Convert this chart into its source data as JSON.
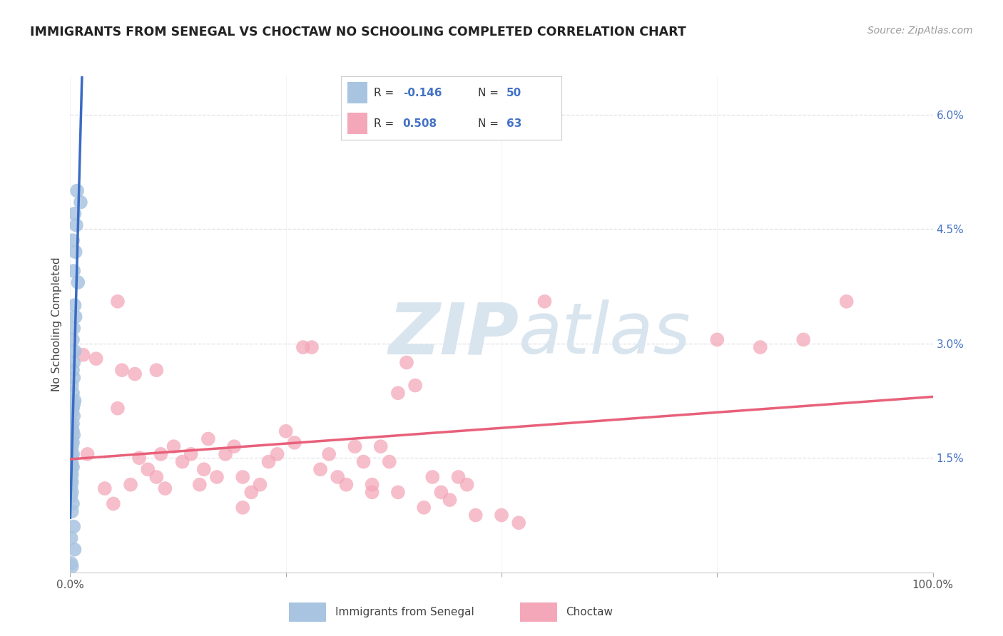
{
  "title": "IMMIGRANTS FROM SENEGAL VS CHOCTAW NO SCHOOLING COMPLETED CORRELATION CHART",
  "source": "Source: ZipAtlas.com",
  "ylabel": "No Schooling Completed",
  "xlim": [
    0,
    100
  ],
  "ylim": [
    0,
    6.5
  ],
  "yticks": [
    0,
    1.5,
    3.0,
    4.5,
    6.0
  ],
  "ytick_labels_right": [
    "",
    "1.5%",
    "3.0%",
    "4.5%",
    "6.0%"
  ],
  "blue_scatter_x": [
    0.8,
    1.2,
    0.5,
    0.7,
    0.3,
    0.6,
    0.4,
    0.9,
    0.5,
    0.6,
    0.4,
    0.3,
    0.5,
    0.4,
    0.3,
    0.4,
    0.2,
    0.3,
    0.5,
    0.4,
    0.3,
    0.2,
    0.4,
    0.3,
    0.2,
    0.3,
    0.4,
    0.2,
    0.3,
    0.2,
    0.1,
    0.3,
    0.2,
    0.1,
    0.2,
    0.3,
    0.1,
    0.2,
    0.1,
    0.2,
    0.1,
    0.2,
    0.1,
    0.3,
    0.2,
    0.4,
    0.1,
    0.5,
    0.1,
    0.2
  ],
  "blue_scatter_y": [
    5.0,
    4.85,
    4.7,
    4.55,
    4.35,
    4.2,
    3.95,
    3.8,
    3.5,
    3.35,
    3.2,
    3.05,
    2.9,
    2.75,
    2.65,
    2.55,
    2.45,
    2.35,
    2.25,
    2.2,
    2.15,
    2.1,
    2.05,
    1.95,
    1.9,
    1.85,
    1.8,
    1.75,
    1.7,
    1.65,
    1.6,
    1.55,
    1.5,
    1.48,
    1.42,
    1.38,
    1.32,
    1.28,
    1.22,
    1.18,
    1.12,
    1.05,
    1.0,
    0.9,
    0.8,
    0.6,
    0.45,
    0.3,
    0.12,
    0.08
  ],
  "pink_scatter_x": [
    1.5,
    2.0,
    3.0,
    4.0,
    5.0,
    5.5,
    6.0,
    7.0,
    7.5,
    8.0,
    9.0,
    10.0,
    10.5,
    11.0,
    12.0,
    13.0,
    14.0,
    15.0,
    15.5,
    16.0,
    17.0,
    18.0,
    19.0,
    20.0,
    21.0,
    22.0,
    23.0,
    24.0,
    25.0,
    26.0,
    27.0,
    28.0,
    29.0,
    30.0,
    31.0,
    32.0,
    33.0,
    34.0,
    35.0,
    36.0,
    37.0,
    38.0,
    39.0,
    40.0,
    41.0,
    42.0,
    43.0,
    44.0,
    45.0,
    46.0,
    47.0,
    50.0,
    52.0,
    55.0,
    75.0,
    80.0,
    85.0,
    90.0,
    5.5,
    10.0,
    20.0,
    35.0,
    38.0
  ],
  "pink_scatter_y": [
    2.85,
    1.55,
    2.8,
    1.1,
    0.9,
    3.55,
    2.65,
    1.15,
    2.6,
    1.5,
    1.35,
    1.25,
    1.55,
    1.1,
    1.65,
    1.45,
    1.55,
    1.15,
    1.35,
    1.75,
    1.25,
    1.55,
    1.65,
    1.25,
    1.05,
    1.15,
    1.45,
    1.55,
    1.85,
    1.7,
    2.95,
    2.95,
    1.35,
    1.55,
    1.25,
    1.15,
    1.65,
    1.45,
    1.05,
    1.65,
    1.45,
    1.05,
    2.75,
    2.45,
    0.85,
    1.25,
    1.05,
    0.95,
    1.25,
    1.15,
    0.75,
    0.75,
    0.65,
    3.55,
    3.05,
    2.95,
    3.05,
    3.55,
    2.15,
    2.65,
    0.85,
    1.15,
    2.35
  ],
  "blue_line_color": "#3a6bc4",
  "pink_line_color": "#e8607a",
  "dashed_line_color": "#9ab0cc",
  "watermark_color": "#d8e4ee",
  "background_color": "#ffffff",
  "grid_color": "#e0e0e8",
  "legend_blue_color": "#a8c4e0",
  "legend_pink_color": "#f4a7b9",
  "R_blue": "-0.146",
  "N_blue": "50",
  "R_pink": "0.508",
  "N_pink": "63"
}
